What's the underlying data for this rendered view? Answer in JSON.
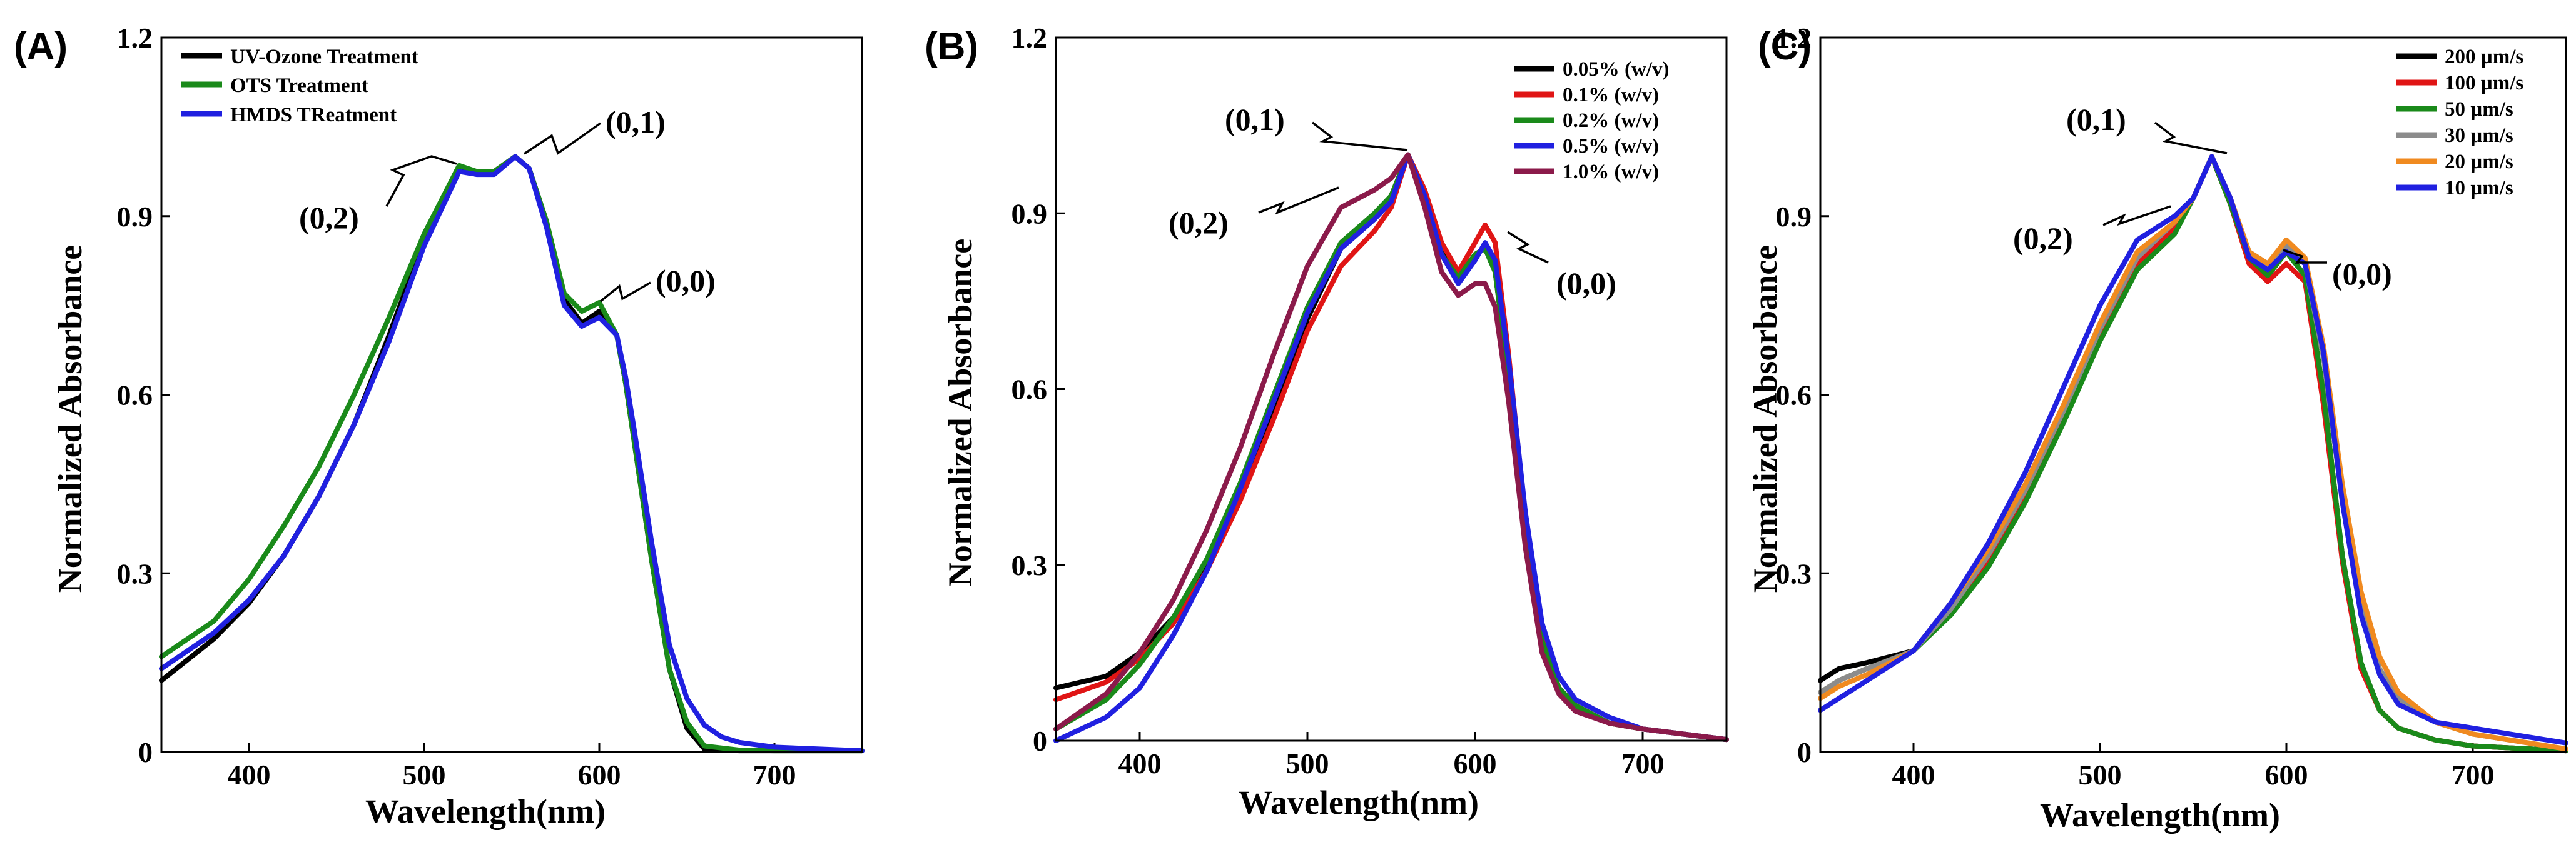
{
  "chart_data": [
    {
      "type": "line",
      "panel_label": "(A)",
      "xlabel": "Wavelength(nm)",
      "ylabel": "Normalized Absorbance",
      "xlim": [
        350,
        750
      ],
      "ylim": [
        0,
        1.2
      ],
      "xticks": [
        400,
        500,
        600,
        700
      ],
      "xtick_labels": [
        "400",
        "500",
        "600",
        "700"
      ],
      "yticks": [
        0,
        0.3,
        0.6,
        0.9,
        1.2
      ],
      "ytick_labels": [
        "0",
        "0.3",
        "0.6",
        "0.9",
        "1.2"
      ],
      "legend_position": "top-left",
      "series": [
        {
          "name": "UV-Ozone Treatment",
          "color": "#000000",
          "x": [
            350,
            380,
            400,
            420,
            440,
            460,
            480,
            500,
            520,
            530,
            540,
            552,
            560,
            570,
            580,
            590,
            600,
            610,
            615,
            620,
            630,
            640,
            650,
            660,
            680,
            700,
            750
          ],
          "y": [
            0.12,
            0.19,
            0.25,
            0.33,
            0.43,
            0.55,
            0.7,
            0.86,
            0.98,
            0.975,
            0.975,
            1.0,
            0.98,
            0.89,
            0.76,
            0.72,
            0.74,
            0.7,
            0.62,
            0.52,
            0.32,
            0.14,
            0.04,
            0.005,
            0.002,
            0.002,
            0.002
          ]
        },
        {
          "name": "OTS Treatment",
          "color": "#1a8a1a",
          "x": [
            350,
            380,
            400,
            420,
            440,
            460,
            480,
            500,
            520,
            530,
            540,
            552,
            560,
            570,
            580,
            590,
            600,
            610,
            615,
            620,
            630,
            640,
            650,
            660,
            680,
            700,
            750
          ],
          "y": [
            0.16,
            0.22,
            0.29,
            0.38,
            0.48,
            0.6,
            0.73,
            0.87,
            0.985,
            0.975,
            0.975,
            1.0,
            0.98,
            0.89,
            0.77,
            0.74,
            0.755,
            0.7,
            0.62,
            0.52,
            0.32,
            0.14,
            0.05,
            0.01,
            0.003,
            0.002,
            0.002
          ]
        },
        {
          "name": "HMDS TReatment",
          "color": "#2020e0",
          "x": [
            350,
            380,
            400,
            420,
            440,
            460,
            480,
            500,
            520,
            530,
            540,
            552,
            560,
            570,
            580,
            590,
            600,
            610,
            615,
            620,
            630,
            640,
            650,
            660,
            670,
            680,
            700,
            750
          ],
          "y": [
            0.14,
            0.2,
            0.255,
            0.33,
            0.43,
            0.55,
            0.69,
            0.85,
            0.975,
            0.97,
            0.97,
            1.0,
            0.98,
            0.88,
            0.75,
            0.715,
            0.73,
            0.7,
            0.63,
            0.54,
            0.35,
            0.18,
            0.09,
            0.045,
            0.025,
            0.016,
            0.008,
            0.002
          ]
        }
      ],
      "annotations": [
        "(0,2)",
        "(0,1)",
        "(0,0)"
      ]
    },
    {
      "type": "line",
      "panel_label": "(B)",
      "xlabel": "Wavelength(nm)",
      "ylabel": "Normalized Absorbance",
      "xlim": [
        350,
        750
      ],
      "ylim": [
        0,
        1.2
      ],
      "xticks": [
        400,
        500,
        600,
        700
      ],
      "xtick_labels": [
        "400",
        "500",
        "600",
        "700"
      ],
      "yticks": [
        0,
        0.3,
        0.6,
        0.9,
        1.2
      ],
      "ytick_labels": [
        "0",
        "0.3",
        "0.6",
        "0.9",
        "1.2"
      ],
      "legend_position": "top-right",
      "series": [
        {
          "name": "0.05% (w/v)",
          "color": "#000000",
          "x": [
            350,
            380,
            400,
            420,
            440,
            460,
            480,
            500,
            520,
            540,
            550,
            560,
            570,
            580,
            590,
            600,
            606,
            612,
            620,
            630,
            640,
            650,
            660,
            680,
            700,
            750
          ],
          "y": [
            0.09,
            0.11,
            0.15,
            0.21,
            0.3,
            0.42,
            0.56,
            0.72,
            0.84,
            0.89,
            0.93,
            1.0,
            0.93,
            0.84,
            0.79,
            0.83,
            0.84,
            0.8,
            0.62,
            0.36,
            0.17,
            0.09,
            0.06,
            0.03,
            0.02,
            0.002
          ]
        },
        {
          "name": "0.1% (w/v)",
          "color": "#e01515",
          "x": [
            350,
            380,
            400,
            420,
            440,
            460,
            480,
            500,
            520,
            540,
            550,
            560,
            570,
            580,
            590,
            600,
            606,
            612,
            620,
            630,
            640,
            650,
            660,
            680,
            700,
            750
          ],
          "y": [
            0.07,
            0.1,
            0.14,
            0.2,
            0.29,
            0.41,
            0.55,
            0.7,
            0.81,
            0.87,
            0.91,
            1.0,
            0.94,
            0.85,
            0.8,
            0.85,
            0.88,
            0.85,
            0.66,
            0.38,
            0.18,
            0.09,
            0.06,
            0.03,
            0.02,
            0.002
          ]
        },
        {
          "name": "0.2% (w/v)",
          "color": "#1a8a1a",
          "x": [
            350,
            380,
            400,
            420,
            440,
            460,
            480,
            500,
            520,
            540,
            550,
            560,
            570,
            580,
            590,
            600,
            606,
            612,
            620,
            630,
            640,
            650,
            660,
            680,
            700,
            750
          ],
          "y": [
            0.02,
            0.07,
            0.13,
            0.21,
            0.31,
            0.44,
            0.59,
            0.74,
            0.85,
            0.9,
            0.93,
            1.0,
            0.93,
            0.83,
            0.79,
            0.83,
            0.84,
            0.8,
            0.62,
            0.36,
            0.17,
            0.09,
            0.06,
            0.03,
            0.02,
            0.002
          ]
        },
        {
          "name": "0.5% (w/v)",
          "color": "#2020e0",
          "x": [
            350,
            380,
            400,
            420,
            440,
            460,
            480,
            500,
            520,
            540,
            550,
            560,
            570,
            580,
            590,
            600,
            606,
            612,
            620,
            630,
            640,
            650,
            660,
            680,
            700,
            750
          ],
          "y": [
            0.0,
            0.04,
            0.09,
            0.18,
            0.29,
            0.43,
            0.58,
            0.73,
            0.84,
            0.89,
            0.92,
            1.0,
            0.93,
            0.83,
            0.78,
            0.82,
            0.85,
            0.82,
            0.65,
            0.39,
            0.2,
            0.11,
            0.07,
            0.04,
            0.02,
            0.002
          ]
        },
        {
          "name": "1.0% (w/v)",
          "color": "#8b1a4a",
          "x": [
            350,
            380,
            400,
            420,
            440,
            460,
            480,
            500,
            520,
            540,
            550,
            560,
            570,
            580,
            590,
            600,
            606,
            612,
            620,
            630,
            640,
            650,
            660,
            680,
            700,
            750
          ],
          "y": [
            0.02,
            0.08,
            0.15,
            0.24,
            0.36,
            0.5,
            0.66,
            0.81,
            0.91,
            0.94,
            0.96,
            1.0,
            0.91,
            0.8,
            0.76,
            0.78,
            0.78,
            0.74,
            0.58,
            0.33,
            0.15,
            0.08,
            0.05,
            0.03,
            0.02,
            0.002
          ]
        }
      ],
      "annotations": [
        "(0,1)",
        "(0,2)",
        "(0,0)"
      ]
    },
    {
      "type": "line",
      "panel_label": "(C)",
      "xlabel": "Wavelength(nm)",
      "ylabel": "Normalized Absorbance",
      "xlim": [
        350,
        750
      ],
      "ylim": [
        0,
        1.2
      ],
      "xticks": [
        400,
        500,
        600,
        700
      ],
      "xtick_labels": [
        "400",
        "500",
        "600",
        "700"
      ],
      "yticks": [
        0,
        0.3,
        0.6,
        0.9,
        1.2
      ],
      "ytick_labels": [
        "0",
        "0.3",
        "0.6",
        "0.9",
        "1.2"
      ],
      "legend_position": "top-right",
      "series": [
        {
          "name": "200 µm/s",
          "color": "#000000",
          "x": [
            350,
            360,
            375,
            400,
            420,
            440,
            460,
            480,
            500,
            520,
            540,
            550,
            560,
            570,
            580,
            590,
            600,
            610,
            620,
            630,
            640,
            650,
            660,
            680,
            700,
            750
          ],
          "y": [
            0.12,
            0.14,
            0.15,
            0.17,
            0.24,
            0.32,
            0.43,
            0.56,
            0.7,
            0.82,
            0.88,
            0.93,
            1.0,
            0.92,
            0.83,
            0.8,
            0.84,
            0.8,
            0.6,
            0.33,
            0.15,
            0.07,
            0.04,
            0.02,
            0.01,
            0.002
          ]
        },
        {
          "name": "100 µm/s",
          "color": "#e01515",
          "x": [
            350,
            360,
            375,
            400,
            420,
            440,
            460,
            480,
            500,
            520,
            540,
            550,
            560,
            570,
            580,
            590,
            600,
            610,
            620,
            630,
            640,
            650,
            660,
            680,
            700,
            750
          ],
          "y": [
            0.1,
            0.12,
            0.14,
            0.17,
            0.24,
            0.32,
            0.43,
            0.56,
            0.7,
            0.82,
            0.88,
            0.93,
            1.0,
            0.92,
            0.82,
            0.79,
            0.82,
            0.79,
            0.58,
            0.32,
            0.14,
            0.07,
            0.04,
            0.02,
            0.01,
            0.002
          ]
        },
        {
          "name": "50 µm/s",
          "color": "#1a8a1a",
          "x": [
            350,
            360,
            375,
            400,
            420,
            440,
            460,
            480,
            500,
            520,
            540,
            550,
            560,
            570,
            580,
            590,
            600,
            610,
            620,
            630,
            640,
            650,
            660,
            680,
            700,
            750
          ],
          "y": [
            0.1,
            0.12,
            0.14,
            0.17,
            0.23,
            0.31,
            0.42,
            0.55,
            0.69,
            0.81,
            0.87,
            0.93,
            1.0,
            0.92,
            0.83,
            0.8,
            0.84,
            0.8,
            0.6,
            0.33,
            0.15,
            0.07,
            0.04,
            0.02,
            0.01,
            0.002
          ]
        },
        {
          "name": "30 µm/s",
          "color": "#8c8c8c",
          "x": [
            350,
            360,
            375,
            400,
            420,
            440,
            460,
            480,
            500,
            520,
            540,
            550,
            560,
            570,
            580,
            590,
            600,
            610,
            620,
            630,
            640,
            650,
            660,
            680,
            700,
            750
          ],
          "y": [
            0.1,
            0.12,
            0.14,
            0.17,
            0.24,
            0.33,
            0.44,
            0.57,
            0.71,
            0.83,
            0.89,
            0.93,
            1.0,
            0.93,
            0.84,
            0.82,
            0.85,
            0.82,
            0.66,
            0.42,
            0.24,
            0.14,
            0.09,
            0.05,
            0.03,
            0.005
          ]
        },
        {
          "name": "20 µm/s",
          "color": "#f08a20",
          "x": [
            350,
            360,
            375,
            400,
            420,
            440,
            460,
            480,
            500,
            520,
            540,
            550,
            560,
            570,
            580,
            590,
            600,
            610,
            620,
            630,
            640,
            650,
            660,
            680,
            700,
            750
          ],
          "y": [
            0.09,
            0.11,
            0.13,
            0.17,
            0.25,
            0.34,
            0.45,
            0.58,
            0.72,
            0.84,
            0.89,
            0.93,
            1.0,
            0.93,
            0.84,
            0.82,
            0.86,
            0.83,
            0.68,
            0.45,
            0.27,
            0.16,
            0.1,
            0.05,
            0.03,
            0.005
          ]
        },
        {
          "name": "10 µm/s",
          "color": "#2020e0",
          "x": [
            350,
            360,
            375,
            400,
            420,
            440,
            460,
            480,
            500,
            520,
            540,
            550,
            560,
            570,
            580,
            590,
            600,
            610,
            620,
            630,
            640,
            650,
            660,
            680,
            700,
            750
          ],
          "y": [
            0.07,
            0.09,
            0.12,
            0.17,
            0.25,
            0.35,
            0.47,
            0.61,
            0.75,
            0.86,
            0.9,
            0.93,
            1.0,
            0.93,
            0.83,
            0.81,
            0.84,
            0.82,
            0.67,
            0.42,
            0.23,
            0.13,
            0.08,
            0.05,
            0.04,
            0.015
          ]
        }
      ],
      "annotations": [
        "(0,1)",
        "(0,2)",
        "(0,0)"
      ]
    }
  ]
}
